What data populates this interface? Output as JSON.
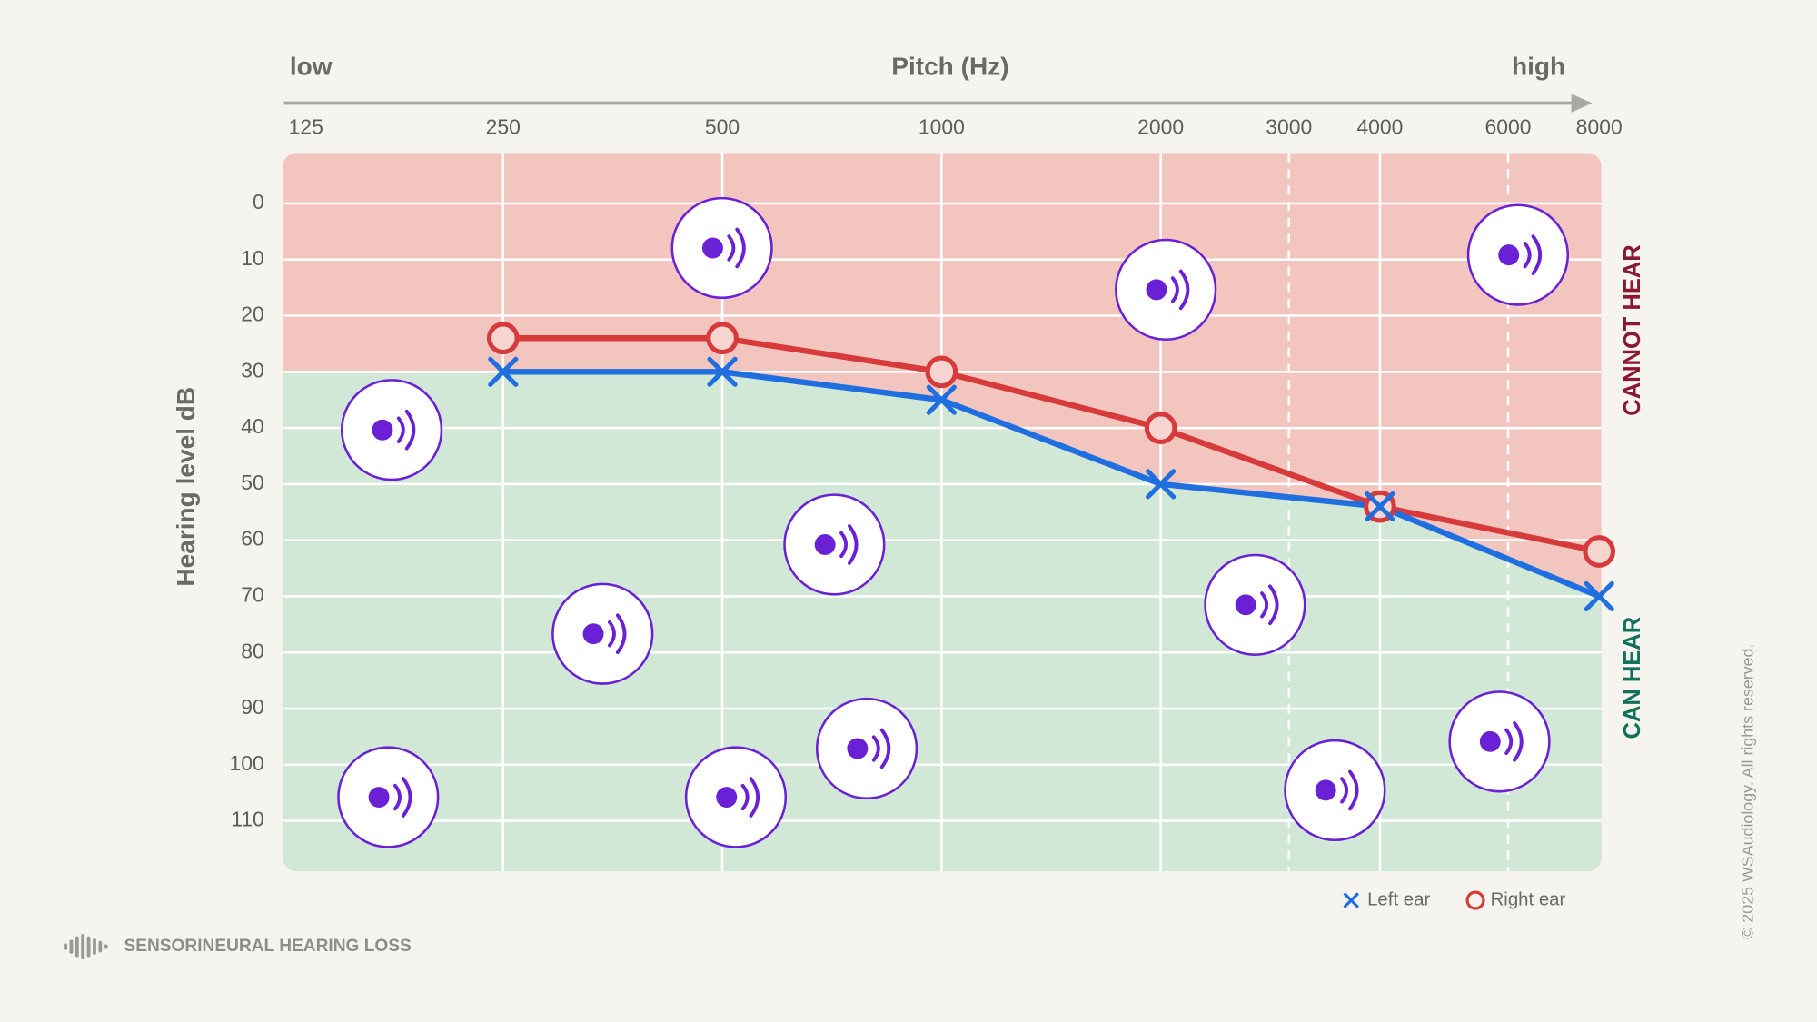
{
  "chart_data": {
    "type": "line",
    "x_low_label": "low",
    "x_label": "Pitch (Hz)",
    "x_high_label": "high",
    "y_label": "Hearing level dB",
    "x": [
      250,
      500,
      1000,
      2000,
      4000,
      8000
    ],
    "xscale": "log",
    "xlim": [
      125,
      8000
    ],
    "xticks": [
      125,
      250,
      500,
      1000,
      2000,
      3000,
      4000,
      6000,
      8000
    ],
    "ylim": [
      -9,
      119
    ],
    "y_reversed": true,
    "yticks": [
      0,
      10,
      20,
      30,
      40,
      50,
      60,
      70,
      80,
      90,
      100,
      110
    ],
    "grid": true,
    "series": [
      {
        "name": "Left ear",
        "color": "#1f6fe0",
        "marker": "x",
        "values": [
          30,
          30,
          35,
          50,
          54,
          70
        ]
      },
      {
        "name": "Right ear",
        "color": "#d63a3a",
        "marker": "o",
        "values": [
          24,
          24,
          30,
          40,
          54,
          62
        ]
      }
    ],
    "zones": [
      {
        "label": "CANNOT HEAR",
        "color": "#f3c5bf",
        "label_color": "#8a1830"
      },
      {
        "label": "CAN HEAR",
        "color": "#d2e8d6",
        "label_color": "#13705a"
      }
    ],
    "legend": "bottom-right"
  },
  "footer": {
    "title": "SENSORINEURAL HEARING LOSS",
    "copyright": "© 2025 WSAudiology. All rights reserved."
  }
}
